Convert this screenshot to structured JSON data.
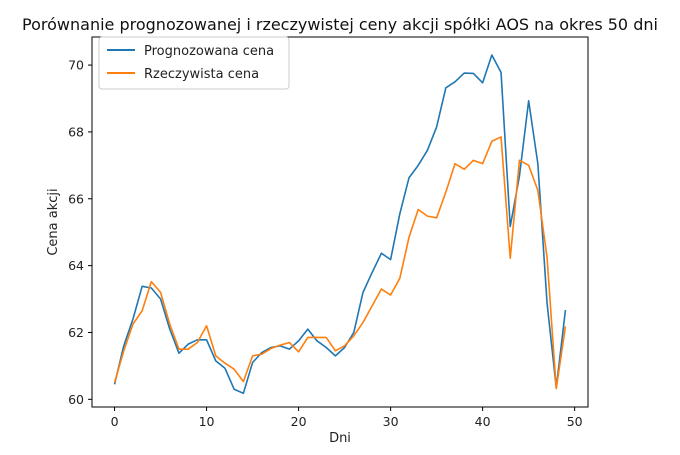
{
  "chart_data": {
    "type": "line",
    "title": "Porównanie prognozowanej i rzeczywistej ceny akcji spółki AOS na okres 50 dni",
    "xlabel": "Dni",
    "ylabel": "Cena akcji",
    "xlim": [
      -2.45,
      51.45
    ],
    "ylim": [
      59.77,
      70.84
    ],
    "xticks": [
      0,
      10,
      20,
      30,
      40,
      50
    ],
    "yticks": [
      60,
      62,
      64,
      66,
      68,
      70
    ],
    "grid": false,
    "legend": "top-left",
    "x": [
      0,
      1,
      2,
      3,
      4,
      5,
      6,
      7,
      8,
      9,
      10,
      11,
      12,
      13,
      14,
      15,
      16,
      17,
      18,
      19,
      20,
      21,
      22,
      23,
      24,
      25,
      26,
      27,
      28,
      29,
      30,
      31,
      32,
      33,
      34,
      35,
      36,
      37,
      38,
      39,
      40,
      41,
      42,
      43,
      44,
      45,
      46,
      47,
      48,
      49
    ],
    "series": [
      {
        "name": "Prognozowana cena",
        "color": "#1f77b4",
        "values": [
          60.45,
          61.6,
          62.4,
          63.38,
          63.33,
          63.0,
          62.1,
          61.38,
          61.65,
          61.78,
          61.78,
          61.15,
          60.93,
          60.3,
          60.18,
          61.1,
          61.4,
          61.55,
          61.6,
          61.5,
          61.75,
          62.1,
          61.75,
          61.55,
          61.3,
          61.55,
          62.0,
          63.2,
          63.8,
          64.37,
          64.18,
          65.55,
          66.63,
          67.0,
          67.45,
          68.15,
          69.32,
          69.5,
          69.76,
          69.75,
          69.47,
          70.3,
          69.78,
          65.17,
          66.68,
          68.93,
          67.05,
          62.88,
          60.35,
          62.67
        ]
      },
      {
        "name": "Rzeczywista cena",
        "color": "#ff7f0e",
        "values": [
          60.5,
          61.45,
          62.25,
          62.65,
          63.52,
          63.2,
          62.25,
          61.5,
          61.5,
          61.7,
          62.2,
          61.3,
          61.08,
          60.9,
          60.53,
          61.3,
          61.35,
          61.52,
          61.62,
          61.7,
          61.42,
          61.85,
          61.85,
          61.85,
          61.45,
          61.6,
          61.9,
          62.3,
          62.8,
          63.3,
          63.12,
          63.62,
          64.85,
          65.68,
          65.48,
          65.43,
          66.2,
          67.05,
          66.88,
          67.15,
          67.05,
          67.72,
          67.85,
          64.22,
          67.15,
          67.0,
          66.25,
          64.25,
          60.32,
          62.18
        ]
      }
    ]
  }
}
